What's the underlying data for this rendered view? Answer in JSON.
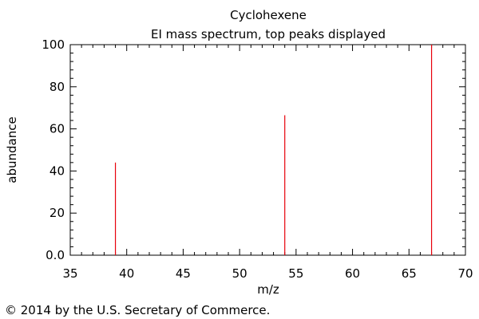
{
  "chart_data": {
    "type": "bar",
    "title": "Cyclohexene",
    "subtitle": "EI mass spectrum, top peaks displayed",
    "xlabel": "m/z",
    "ylabel": "abundance",
    "xlim": [
      35,
      70
    ],
    "ylim": [
      0,
      100
    ],
    "x_ticks": [
      "35",
      "40",
      "45",
      "50",
      "55",
      "60",
      "65",
      "70"
    ],
    "y_ticks": [
      "0.0",
      "20",
      "40",
      "60",
      "80",
      "100"
    ],
    "peaks": [
      {
        "mz": 39,
        "abundance": 44
      },
      {
        "mz": 54,
        "abundance": 66.5
      },
      {
        "mz": 67,
        "abundance": 100
      }
    ],
    "peak_color": "#e8000b",
    "grid": false
  },
  "footer": {
    "copyright": "© 2014 by the U.S. Secretary of Commerce."
  }
}
